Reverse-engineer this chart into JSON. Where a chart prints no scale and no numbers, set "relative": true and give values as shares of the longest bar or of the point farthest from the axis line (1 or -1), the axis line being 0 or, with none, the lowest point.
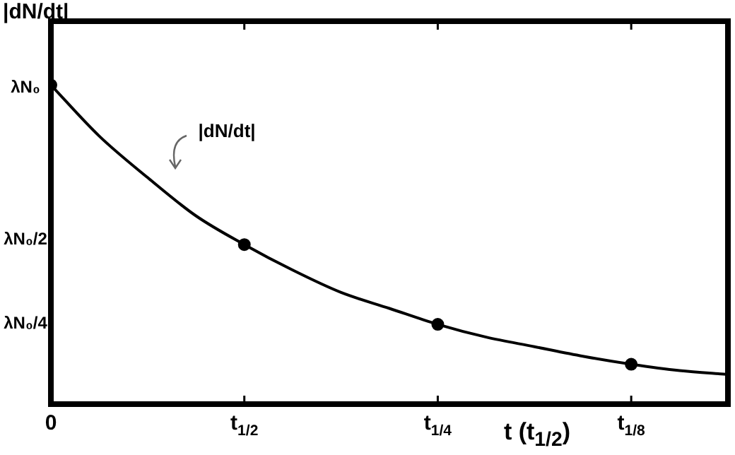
{
  "chart_data": {
    "type": "line",
    "relative": true,
    "xlabel": "t (t$_{1/2}$)",
    "ylabel": "|dN/dt|",
    "categories": [
      "0",
      null,
      null,
      null,
      "t$_{1/2}$",
      null,
      null,
      null,
      "t$_{1/4}$",
      null,
      null,
      null,
      "t$_{1/8}$",
      null,
      null
    ],
    "series": [
      {
        "type": "line",
        "color": "#000000",
        "marker": "none",
        "values": [
          1,
          0.84,
          0.71,
          0.59,
          0.5,
          0.42,
          0.35,
          0.3,
          0.25,
          0.21,
          0.18,
          0.15,
          0.125,
          0.105,
          0.093
        ]
      },
      {
        "type": "scatter",
        "color": "#000000",
        "marker": "circle",
        "x": [
          "0",
          "t$_{1/2}$",
          "t$_{1/4}$",
          "t$_{1/8}$"
        ],
        "values": [
          1,
          0.5,
          0.25,
          0.125
        ]
      }
    ],
    "annotations": [
      "λN₀",
      "λN₀/2",
      "λN₀/4",
      "|dN/dt|"
    ],
    "grid": false,
    "legend": false
  }
}
